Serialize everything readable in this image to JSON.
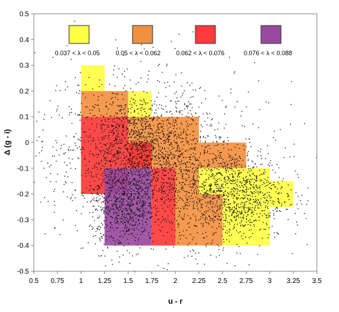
{
  "chart_data": {
    "type": "scatter",
    "title": "",
    "xlabel": "u - r",
    "ylabel": "Δ (g - i)",
    "xlim": [
      0.5,
      3.5
    ],
    "ylim": [
      -0.5,
      0.5
    ],
    "x_ticks": [
      "0.5",
      "0.75",
      "1",
      "1.25",
      "1.5",
      "1.75",
      "2",
      "2.25",
      "2.5",
      "2.75",
      "3",
      "3.25",
      "3.5"
    ],
    "y_ticks": [
      "0.5",
      "0.4",
      "0.3",
      "0.2",
      "0.1",
      "0",
      "-0.1",
      "-0.2",
      "-0.3",
      "-0.4",
      "-0.5"
    ],
    "grid": false,
    "legend_position": "top",
    "legend": [
      {
        "label": "0.037 < λ < 0.05",
        "color": "#ffff44"
      },
      {
        "label": "0.05 < λ < 0.062",
        "color": "#f39040"
      },
      {
        "label": "0.062 < λ < 0.076",
        "color": "#ff3a3a"
      },
      {
        "label": "0.076 < λ < 0.088",
        "color": "#9a4a9e"
      }
    ],
    "regions": [
      {
        "class": 1,
        "x": [
          1.0,
          1.25
        ],
        "y": [
          0.2,
          0.3
        ]
      },
      {
        "class": 1,
        "x": [
          1.5,
          1.75
        ],
        "y": [
          0.1,
          0.2
        ]
      },
      {
        "class": 2,
        "x": [
          1.0,
          1.5
        ],
        "y": [
          0.1,
          0.2
        ]
      },
      {
        "class": 2,
        "x": [
          1.5,
          2.25
        ],
        "y": [
          0.0,
          0.1
        ]
      },
      {
        "class": 2,
        "x": [
          1.75,
          2.75
        ],
        "y": [
          -0.1,
          0.0
        ]
      },
      {
        "class": 2,
        "x": [
          2.0,
          2.25
        ],
        "y": [
          -0.4,
          -0.1
        ]
      },
      {
        "class": 2,
        "x": [
          2.25,
          2.5
        ],
        "y": [
          -0.4,
          -0.2
        ]
      },
      {
        "class": 2,
        "x": [
          1.5,
          1.75
        ],
        "y": [
          -0.1,
          0.0
        ]
      },
      {
        "class": 3,
        "x": [
          1.0,
          1.5
        ],
        "y": [
          -0.2,
          0.1
        ]
      },
      {
        "class": 3,
        "x": [
          1.5,
          1.75
        ],
        "y": [
          -0.1,
          0.0
        ]
      },
      {
        "class": 3,
        "x": [
          1.75,
          2.0
        ],
        "y": [
          -0.4,
          -0.1
        ]
      },
      {
        "class": 1,
        "x": [
          2.25,
          3.0
        ],
        "y": [
          -0.2,
          -0.1
        ]
      },
      {
        "class": 1,
        "x": [
          3.0,
          3.25
        ],
        "y": [
          -0.25,
          -0.15
        ]
      },
      {
        "class": 1,
        "x": [
          2.5,
          3.0
        ],
        "y": [
          -0.4,
          -0.2
        ]
      },
      {
        "class": 4,
        "x": [
          1.25,
          1.75
        ],
        "y": [
          -0.4,
          -0.1
        ]
      }
    ],
    "point_clusters": [
      {
        "cx": 1.6,
        "cy": -0.02,
        "sx": 0.35,
        "sy": 0.11,
        "n": 1500
      },
      {
        "cx": 2.6,
        "cy": -0.2,
        "sx": 0.28,
        "sy": 0.09,
        "n": 1100
      },
      {
        "cx": 1.45,
        "cy": -0.25,
        "sx": 0.18,
        "sy": 0.08,
        "n": 700
      },
      {
        "cx": 2.0,
        "cy": -0.15,
        "sx": 0.3,
        "sy": 0.12,
        "n": 500
      },
      {
        "cx": 1.6,
        "cy": 0.0,
        "sx": 0.8,
        "sy": 0.2,
        "n": 400
      }
    ]
  }
}
